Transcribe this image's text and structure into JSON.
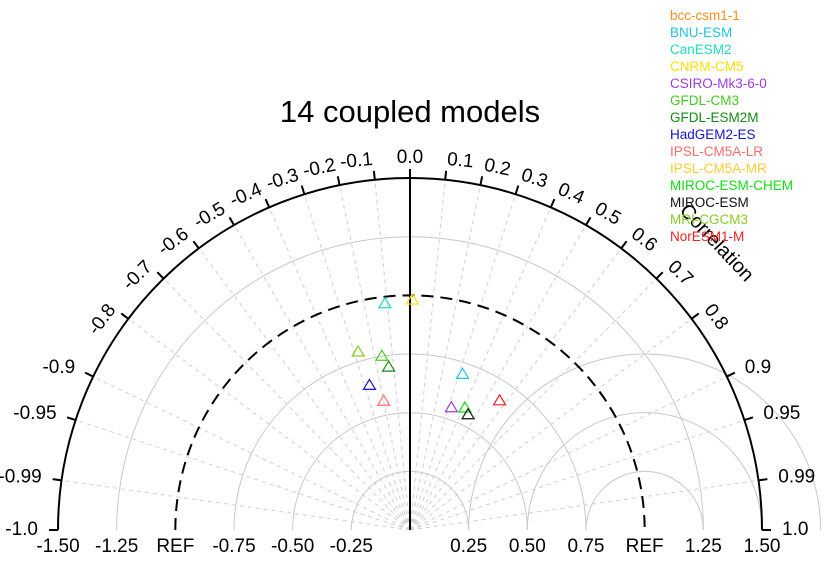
{
  "chart_data": {
    "type": "scatter",
    "subtype": "taylor-diagram-full-polar",
    "title": "14 coupled models",
    "correlation_label": "Correlation",
    "x_tick_labels": [
      "-1.50",
      "-1.25",
      "REF",
      "-0.75",
      "-0.50",
      "-0.25",
      "0.25",
      "0.50",
      "0.75",
      "REF",
      "1.25",
      "1.50"
    ],
    "x_tick_values": [
      -1.5,
      -1.25,
      -1.0,
      -0.75,
      -0.5,
      -0.25,
      0.25,
      0.5,
      0.75,
      1.0,
      1.25,
      1.5
    ],
    "correlation_ticks": [
      {
        "r": -1.0,
        "label": "-1.0"
      },
      {
        "r": -0.99,
        "label": "-0.99"
      },
      {
        "r": -0.95,
        "label": "-0.95"
      },
      {
        "r": -0.9,
        "label": "-0.9"
      },
      {
        "r": -0.8,
        "label": "-0.8"
      },
      {
        "r": -0.7,
        "label": "-0.7"
      },
      {
        "r": -0.6,
        "label": "-0.6"
      },
      {
        "r": -0.5,
        "label": "-0.5"
      },
      {
        "r": -0.4,
        "label": "-0.4"
      },
      {
        "r": -0.3,
        "label": "-0.3"
      },
      {
        "r": -0.2,
        "label": "-0.2"
      },
      {
        "r": -0.1,
        "label": "-0.1"
      },
      {
        "r": 0.0,
        "label": "0.0"
      },
      {
        "r": 0.1,
        "label": "0.1"
      },
      {
        "r": 0.2,
        "label": "0.2"
      },
      {
        "r": 0.3,
        "label": "0.3"
      },
      {
        "r": 0.4,
        "label": "0.4"
      },
      {
        "r": 0.5,
        "label": "0.5"
      },
      {
        "r": 0.6,
        "label": "0.6"
      },
      {
        "r": 0.7,
        "label": "0.7"
      },
      {
        "r": 0.8,
        "label": "0.8"
      },
      {
        "r": 0.9,
        "label": "0.9"
      },
      {
        "r": 0.95,
        "label": "0.95"
      },
      {
        "r": 0.99,
        "label": "0.99"
      },
      {
        "r": 1.0,
        "label": "1.0"
      }
    ],
    "grid_radii": [
      0.25,
      0.5,
      0.75,
      1.25
    ],
    "ref_radius": 1.0,
    "max_radius": 1.5,
    "rmsd_arcs": [
      0.25,
      0.5,
      0.75
    ],
    "legend_position": "top-right",
    "series": [
      {
        "name": "bcc-csm1-1",
        "color": "#ff8c1a"
      },
      {
        "name": "BNU-ESM",
        "color": "#1ec8dc",
        "std": 0.7,
        "corr": 0.32
      },
      {
        "name": "CanESM2",
        "color": "#1fdcc0",
        "std": 0.97,
        "corr": -0.11
      },
      {
        "name": "CNRM-CM5",
        "color": "#ffe000",
        "std": 0.98,
        "corr": 0.01
      },
      {
        "name": "CSIRO-Mk3-6-0",
        "color": "#a23ad8",
        "std": 0.55,
        "corr": 0.32
      },
      {
        "name": "GFDL-CM3",
        "color": "#44cc22",
        "std": 0.75,
        "corr": -0.16
      },
      {
        "name": "GFDL-ESM2M",
        "color": "#138a13",
        "std": 0.7,
        "corr": -0.13
      },
      {
        "name": "HadGEM2-ES",
        "color": "#1414d2",
        "std": 0.64,
        "corr": -0.27
      },
      {
        "name": "IPSL-CM5A-LR",
        "color": "#ff6b6b",
        "std": 0.56,
        "corr": -0.2
      },
      {
        "name": "IPSL-CM5A-MR",
        "color": "#ffcc33"
      },
      {
        "name": "MIROC-ESM-CHEM",
        "color": "#10e010",
        "std": 0.57,
        "corr": 0.41
      },
      {
        "name": "MIROC-ESM",
        "color": "#111111",
        "std": 0.55,
        "corr": 0.45
      },
      {
        "name": "MRI-CGCM3",
        "color": "#88cc22",
        "std": 0.79,
        "corr": -0.28
      },
      {
        "name": "NorESM1-M",
        "color": "#ee2020",
        "std": 0.67,
        "corr": 0.57
      }
    ]
  }
}
